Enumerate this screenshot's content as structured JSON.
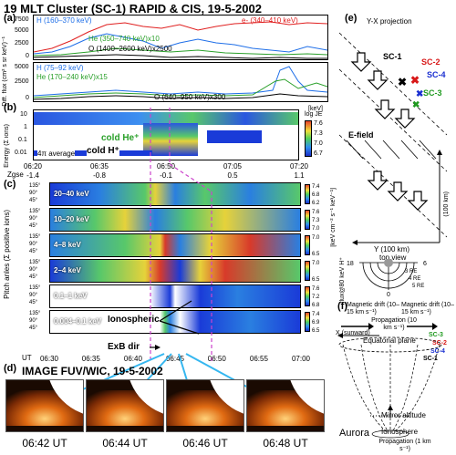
{
  "title": "19 MLT  Cluster (SC-1) RAPID & CIS, 19-5-2002",
  "panel_a": {
    "label": "(a)",
    "legend_h_hi": "H (160–370 keV)",
    "legend_e": "e- (340–410 keV)",
    "legend_he_hi": "He (350–740 keV)x10",
    "legend_o_hi": "O (1400–2600 keV)x2500",
    "legend_h_lo": "H (75–92 keV)",
    "legend_he_lo": "He (170–240 keV)x15",
    "legend_o_lo": "O (640–950 keV)x300",
    "ylabel": "Diff. flux (cm² s sr keV)⁻¹",
    "yticks_top": [
      "7500",
      "5000",
      "2500",
      "0"
    ],
    "yticks_bot": [
      "5000",
      "2500",
      "0"
    ]
  },
  "panel_b": {
    "label": "(b)",
    "unit": "[keV]",
    "yticks": [
      "10",
      "1",
      "0.1",
      "0.01"
    ],
    "cold_he": "cold He⁺",
    "cold_h": "cold H⁺",
    "avg": "4π average",
    "cbar_title": "log JE",
    "cbar_ticks": [
      "7.6",
      "7.3",
      "7.0",
      "6.7"
    ],
    "ylabel": "Energy (Σ ions)",
    "times": [
      "06:20",
      "06:35",
      "06:50",
      "07:05",
      "07:20"
    ],
    "zgse_label": "Zgse",
    "zgse": [
      "-1.4",
      "-0.8",
      "-0.1",
      "0.5",
      "1.1"
    ]
  },
  "panel_c": {
    "label": "(c)",
    "rows": [
      {
        "label": "20–40 keV",
        "cticks": [
          "7.4",
          "6.8",
          "6.2"
        ]
      },
      {
        "label": "10–20 keV",
        "cticks": [
          "7.6",
          "7.3",
          "7.0"
        ]
      },
      {
        "label": "4–8 keV",
        "cticks": [
          "7.0",
          "6.5"
        ]
      },
      {
        "label": "2–4 keV",
        "cticks": [
          "7.0",
          "6.5"
        ]
      },
      {
        "label": "0.1–1 keV",
        "cticks": [
          "7.6",
          "7.2",
          "6.8"
        ]
      },
      {
        "label": "0.004–0.1 keV",
        "cticks": [
          "7.4",
          "6.9",
          "6.5"
        ]
      }
    ],
    "angles": [
      "135°",
      "90°",
      "45°"
    ],
    "ionospheric": "Ionospheric",
    "exb": "ExB dir",
    "ylabel": "Pitch anles (Σ positive ions)",
    "cbar_label": "flux@80 keV H⁺",
    "cbar_unit": "[keV cm⁻² s⁻¹ keV⁻¹]",
    "ut_label": "UT",
    "times": [
      "06:30",
      "06:35",
      "06:40",
      "06:45",
      "06:50",
      "06:55",
      "07:00"
    ]
  },
  "panel_d": {
    "label": "(d)",
    "title": "IMAGE  FUV/WIC, 19-5-2002",
    "images": [
      "06:42 UT",
      "06:44 UT",
      "06:46 UT",
      "06:48 UT"
    ]
  },
  "panel_e": {
    "label": "(e)",
    "yx": "Y-X projection",
    "sc1": "SC-1",
    "sc2": "SC-2",
    "sc4": "SC-4",
    "sc3": "SC-3",
    "efield": "E-field",
    "km100": "(100 km)",
    "y100": "Y (100 km)",
    "topview": "top view",
    "clock": [
      "18",
      "6",
      "3 RE",
      "4 RE",
      "5 RE",
      "0"
    ]
  },
  "panel_f": {
    "label": "(f)",
    "mag_left": "Magnetic drift (10–15 km s⁻¹)",
    "mag_right": "Magnetic drift (10–15 km s⁻¹)",
    "propagation": "Propagation (10 km s⁻¹)",
    "x_sunward": "X (sunward)",
    "equatorial": "Equatorial plane",
    "sc3": "SC-3",
    "sc2": "SC-2",
    "sc4": "SC-4",
    "sc1": "SC-1",
    "mirror": "Mirror altitude",
    "ionosphere": "Ionosphere",
    "aurora": "Aurora",
    "prop_low": "Propagation (1 km s⁻¹)"
  },
  "colors": {
    "h": "#1f6fe8",
    "e": "#e02020",
    "he": "#2aa02a",
    "o": "#000000",
    "sc2": "#d81818",
    "sc4": "#1a2fd0",
    "sc3": "#1f9a1f",
    "guide": "#cc44cc",
    "arrow": "#35b7f0"
  }
}
